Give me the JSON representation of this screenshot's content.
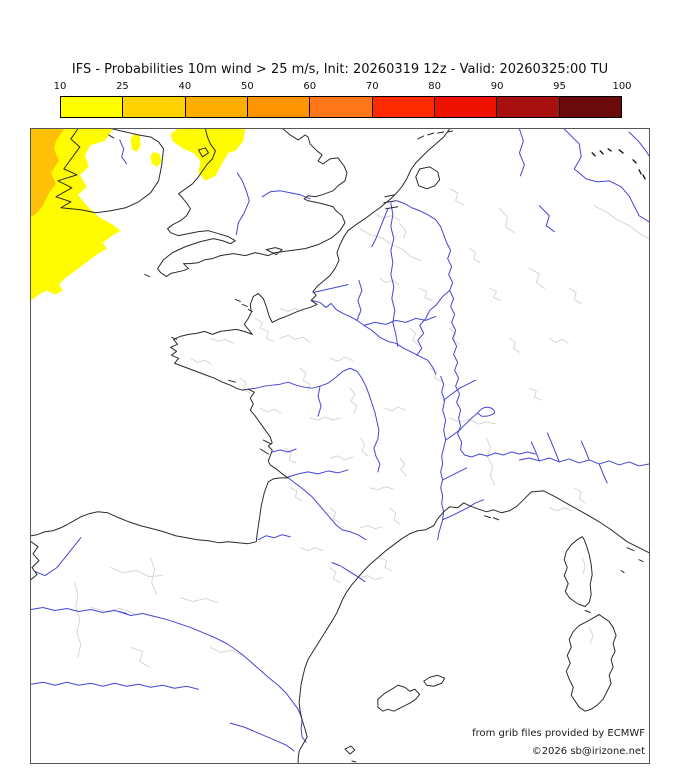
{
  "title": "IFS - Probabilities 10m wind > 25 m/s, Init: 20260319 12z - Valid: 20260325:00 TU",
  "colorbar": {
    "ticks": [
      "10",
      "25",
      "40",
      "50",
      "60",
      "70",
      "80",
      "90",
      "95",
      "100"
    ],
    "segment_colors": [
      "#FFFF00",
      "#FFD300",
      "#FFAE00",
      "#FF9400",
      "#FF7519",
      "#FF2A00",
      "#ED1300",
      "#A81010",
      "#6B0A0A"
    ]
  },
  "map": {
    "attribution_line1": "from grib files provided by ECMWF",
    "attribution_line2": "©2026 sb@irizone.net",
    "colors": {
      "coastline": "#2b2b2b",
      "river": "#4545d5",
      "admin_border": "#d2d2d2",
      "shade_10_25": "#fffb00",
      "shade_25_40": "#ffc107",
      "frame": "#555555"
    },
    "shaded_regions": [
      {
        "area": "Atlantic off SW Ireland and Celtic Sea",
        "probability_range": "10-25"
      },
      {
        "area": "far NW corner of map",
        "probability_range": "25-40"
      },
      {
        "area": "Irish Sea patches",
        "probability_range": "10-25"
      }
    ]
  }
}
